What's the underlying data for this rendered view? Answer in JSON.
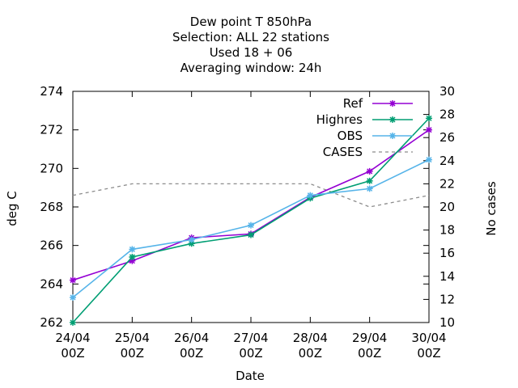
{
  "chart_data": {
    "type": "line",
    "title_lines": [
      "Dew point T 850hPa",
      "Selection: ALL      22 stations",
      "Used  18 + 06",
      "Averaging window: 24h"
    ],
    "xlabel": "Date",
    "ylabel": "deg C",
    "y2label": "No cases",
    "x_ticks": [
      {
        "line1": "24/04",
        "line2": "00Z"
      },
      {
        "line1": "25/04",
        "line2": "00Z"
      },
      {
        "line1": "26/04",
        "line2": "00Z"
      },
      {
        "line1": "27/04",
        "line2": "00Z"
      },
      {
        "line1": "28/04",
        "line2": "00Z"
      },
      {
        "line1": "29/04",
        "line2": "00Z"
      },
      {
        "line1": "30/04",
        "line2": "00Z"
      }
    ],
    "xlim": [
      0,
      6
    ],
    "ylim": [
      262,
      274
    ],
    "y_ticks": [
      262,
      264,
      266,
      268,
      270,
      272,
      274
    ],
    "y2lim": [
      10,
      30
    ],
    "y2_ticks": [
      10,
      12,
      14,
      16,
      18,
      20,
      22,
      24,
      26,
      28,
      30
    ],
    "grid": false,
    "legend_position": "top-right",
    "series": [
      {
        "name": "Ref",
        "axis": "y",
        "color": "#9400d3",
        "style": "solid",
        "marker": true,
        "x": [
          0,
          1,
          2,
          3,
          4,
          5,
          6
        ],
        "values": [
          264.2,
          265.2,
          266.4,
          266.6,
          268.5,
          269.85,
          272.0
        ]
      },
      {
        "name": "Highres",
        "axis": "y",
        "color": "#009e73",
        "style": "solid",
        "marker": true,
        "x": [
          0,
          1,
          2,
          3,
          4,
          5,
          6
        ],
        "values": [
          262.0,
          265.4,
          266.1,
          266.55,
          268.45,
          269.35,
          272.6
        ]
      },
      {
        "name": "OBS",
        "axis": "y",
        "color": "#56b4e9",
        "style": "solid",
        "marker": true,
        "x": [
          0,
          1,
          2,
          3,
          4,
          5,
          6
        ],
        "values": [
          263.3,
          265.8,
          266.3,
          267.05,
          268.6,
          268.95,
          270.45
        ]
      },
      {
        "name": "CASES",
        "axis": "y2",
        "color": "#8c8c8c",
        "style": "dashed",
        "marker": false,
        "x": [
          0,
          1,
          2,
          3,
          4,
          5,
          6
        ],
        "values": [
          21,
          22,
          22,
          22,
          22,
          20,
          21
        ]
      }
    ]
  }
}
